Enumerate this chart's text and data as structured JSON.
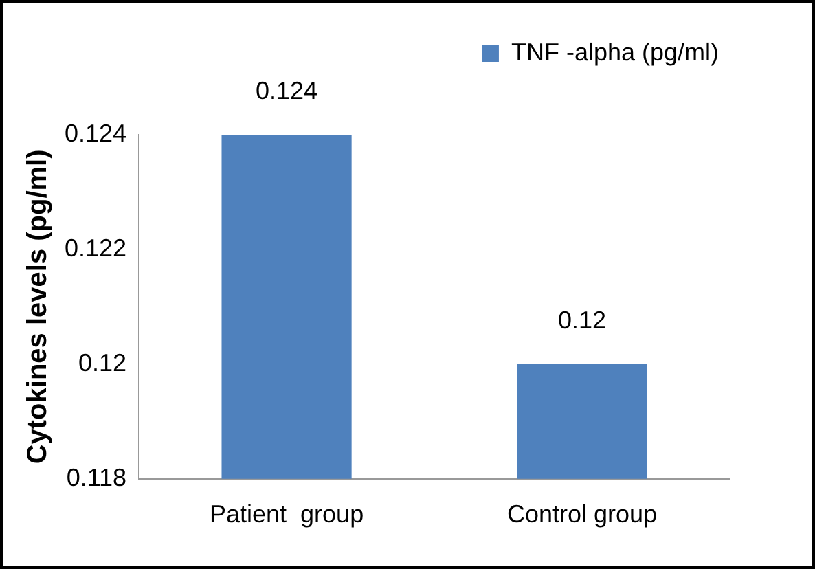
{
  "chart_data": {
    "type": "bar",
    "ylabel": "Cytokines levels (pg/ml)",
    "categories": [
      "Patient  group",
      "Control group"
    ],
    "series": [
      {
        "name": "TNF -alpha (pg/ml)",
        "color": "#4f81bd",
        "values": [
          0.124,
          0.12
        ]
      }
    ],
    "ylim": [
      0.118,
      0.124
    ],
    "yticks": [
      0.118,
      0.12,
      0.122,
      0.124
    ],
    "data_labels": true,
    "legend": "top right",
    "grid": false
  }
}
